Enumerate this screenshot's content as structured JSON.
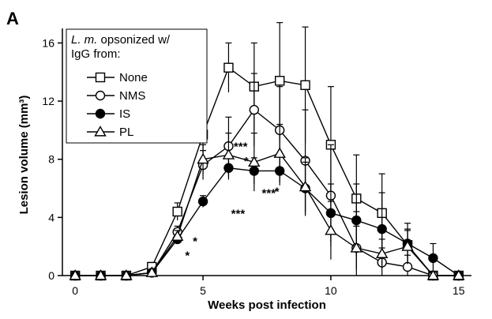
{
  "panel_label": "A",
  "chart_data": {
    "type": "line",
    "xlabel": "Weeks post infection",
    "ylabel": "Lesion volume (mm³)",
    "xlim": [
      -0.5,
      15.5
    ],
    "ylim": [
      0,
      17
    ],
    "x_ticks": [
      0,
      5,
      10,
      15
    ],
    "y_ticks": [
      0,
      4,
      8,
      12,
      16
    ],
    "grid": false,
    "legend": {
      "placement": "top-left",
      "title_prefix_italic": "L. m.",
      "title_rest_line1": " opsonized w/",
      "title_line2": "IgG from:"
    },
    "series": [
      {
        "name": "None",
        "marker": "square-open",
        "x": [
          0,
          1,
          2,
          3,
          4,
          5,
          6,
          7,
          8,
          9,
          10,
          11,
          12,
          13,
          14,
          15
        ],
        "y": [
          0,
          0,
          0,
          0.6,
          4.4,
          9.7,
          14.3,
          13.0,
          13.4,
          13.1,
          9.0,
          5.3,
          4.3,
          2.1,
          0,
          0
        ],
        "err": [
          0,
          0,
          0,
          0.3,
          0.6,
          1.2,
          1.7,
          3.0,
          4.0,
          4.0,
          4.0,
          3.0,
          2.7,
          1.0,
          0,
          0
        ]
      },
      {
        "name": "NMS",
        "marker": "circle-open",
        "x": [
          0,
          1,
          2,
          3,
          4,
          5,
          6,
          7,
          8,
          9,
          10,
          11,
          12,
          13,
          14,
          15
        ],
        "y": [
          0,
          0,
          0,
          0.2,
          3.0,
          7.6,
          8.9,
          11.4,
          10.0,
          7.9,
          5.5,
          1.9,
          0.9,
          0.6,
          0,
          0
        ],
        "err": [
          0,
          0,
          0,
          0.2,
          0.4,
          1.0,
          2.0,
          2.5,
          3.0,
          3.5,
          3.5,
          2.5,
          1.0,
          0.8,
          0,
          0
        ]
      },
      {
        "name": "IS",
        "marker": "circle-filled",
        "x": [
          0,
          1,
          2,
          3,
          4,
          5,
          6,
          7,
          8,
          9,
          10,
          11,
          12,
          13,
          14,
          15
        ],
        "y": [
          0,
          0,
          0,
          0.2,
          2.5,
          5.1,
          7.4,
          7.2,
          7.2,
          6.0,
          4.3,
          3.8,
          3.2,
          2.2,
          1.2,
          0
        ],
        "err": [
          0,
          0,
          0,
          0.2,
          0.3,
          0.4,
          0.8,
          0.9,
          1.0,
          1.8,
          2.0,
          2.5,
          2.5,
          1.4,
          1.0,
          0
        ]
      },
      {
        "name": "PL",
        "marker": "triangle-open",
        "x": [
          0,
          1,
          2,
          3,
          4,
          5,
          6,
          7,
          8,
          9,
          10,
          11,
          12,
          13,
          14,
          15
        ],
        "y": [
          0,
          0,
          0,
          0.2,
          2.7,
          8.0,
          8.3,
          7.8,
          8.4,
          6.1,
          3.1,
          1.9,
          1.5,
          2.0,
          0,
          0
        ],
        "err": [
          0,
          0,
          0,
          0.2,
          0.4,
          1.0,
          1.5,
          2.0,
          2.0,
          2.0,
          2.0,
          1.5,
          1.0,
          1.2,
          0,
          0
        ]
      }
    ],
    "annotations": [
      {
        "text": "***",
        "x": 6.2,
        "y": 8.6
      },
      {
        "text": "*",
        "x": 6.6,
        "y": 7.6
      },
      {
        "text": "***",
        "x": 7.3,
        "y": 5.4
      },
      {
        "text": "*",
        "x": 7.8,
        "y": 5.5
      },
      {
        "text": "***",
        "x": 6.1,
        "y": 4.0
      },
      {
        "text": "*",
        "x": 4.6,
        "y": 2.1
      },
      {
        "text": "*",
        "x": 4.3,
        "y": 1.1
      }
    ]
  }
}
